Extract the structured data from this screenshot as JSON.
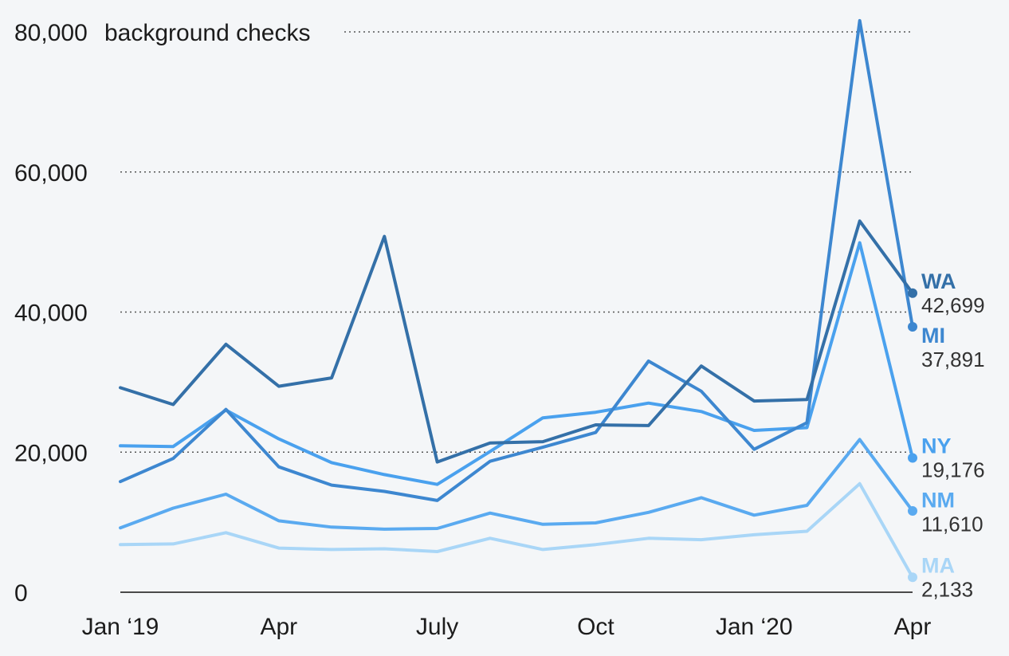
{
  "chart_data": {
    "type": "line",
    "y_unit_label": "background checks",
    "ylim": [
      0,
      80000
    ],
    "yticks": [
      0,
      20000,
      40000,
      60000,
      80000
    ],
    "ytick_labels": [
      "0",
      "20,000",
      "40,000",
      "60,000",
      "80,000"
    ],
    "x": [
      "2019-01",
      "2019-02",
      "2019-03",
      "2019-04",
      "2019-05",
      "2019-06",
      "2019-07",
      "2019-08",
      "2019-09",
      "2019-10",
      "2019-11",
      "2019-12",
      "2020-01",
      "2020-02",
      "2020-03",
      "2020-04"
    ],
    "xtick_labels": [
      {
        "at": "2019-01",
        "label": "Jan ‘19"
      },
      {
        "at": "2019-04",
        "label": "Apr"
      },
      {
        "at": "2019-07",
        "label": "July"
      },
      {
        "at": "2019-10",
        "label": "Oct"
      },
      {
        "at": "2020-01",
        "label": "Jan ‘20"
      },
      {
        "at": "2020-04",
        "label": "Apr"
      }
    ],
    "grid": "horizontal dotted",
    "series": [
      {
        "name": "MA",
        "color": "#a9d6f7",
        "end_label": "2,133",
        "values": [
          6800,
          6900,
          8500,
          6300,
          6100,
          6200,
          5800,
          7700,
          6100,
          6800,
          7700,
          7500,
          8200,
          8700,
          15500,
          2133
        ]
      },
      {
        "name": "NM",
        "color": "#5aaaf0",
        "end_label": "11,610",
        "values": [
          9200,
          12000,
          14000,
          10200,
          9300,
          9000,
          9100,
          11300,
          9700,
          9900,
          11400,
          13500,
          11000,
          12400,
          21800,
          11610
        ]
      },
      {
        "name": "NY",
        "color": "#4aa1ee",
        "end_label": "19,176",
        "values": [
          20900,
          20800,
          26000,
          21900,
          18500,
          16800,
          15400,
          20100,
          24900,
          25700,
          27000,
          25800,
          23100,
          23500,
          49900,
          19176
        ]
      },
      {
        "name": "MI",
        "color": "#3d87d0",
        "end_label": "37,891",
        "values": [
          15800,
          19100,
          26100,
          17900,
          15300,
          14400,
          13100,
          18700,
          20700,
          22800,
          33000,
          28700,
          20400,
          24200,
          81600,
          37891
        ]
      },
      {
        "name": "WA",
        "color": "#3470a8",
        "end_label": "42,699",
        "values": [
          29200,
          26800,
          35400,
          29400,
          30600,
          50800,
          18600,
          21300,
          21500,
          23900,
          23800,
          32300,
          27300,
          27500,
          53000,
          42699
        ]
      }
    ]
  }
}
